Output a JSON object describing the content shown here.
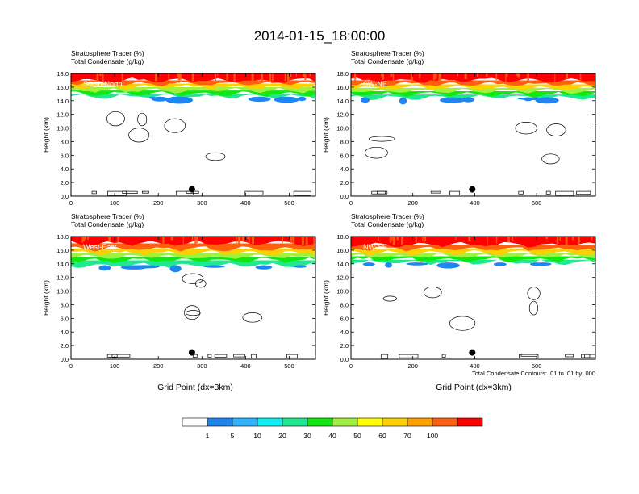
{
  "figure": {
    "title": "2014-01-15_18:00:00",
    "xlabel": "Grid Point (dx=3km)",
    "contour_note": "Total Condensate Contours: .01 to .01 by .000"
  },
  "colorbar": {
    "colors": [
      "#ffffff",
      "#1f85f0",
      "#2fb4ff",
      "#10f0f0",
      "#20e890",
      "#10e810",
      "#a0f040",
      "#ffff00",
      "#ffd000",
      "#ffa000",
      "#ff6010",
      "#ff0000"
    ],
    "labels": [
      "1",
      "5",
      "10",
      "20",
      "30",
      "40",
      "50",
      "60",
      "70",
      "100"
    ]
  },
  "chart_data": [
    {
      "type": "heatmap",
      "header": [
        "Stratosphere Tracer   (%)",
        "Total Condensate   (g/kg)"
      ],
      "section_label": "South-North",
      "ylabel": "Height (km)",
      "ylim": [
        0,
        18
      ],
      "yticks": [
        "0.0",
        "2.0",
        "4.0",
        "6.0",
        "8.0",
        "10.0",
        "12.0",
        "14.0",
        "16.0",
        "18.0"
      ],
      "xlim": [
        0,
        560
      ],
      "xticks": [
        {
          "v": 0,
          "label": "0"
        },
        {
          "v": 100,
          "label": "100"
        },
        {
          "v": 200,
          "label": "200"
        },
        {
          "v": 300,
          "label": "300"
        },
        {
          "v": 400,
          "label": "400"
        },
        {
          "v": 500,
          "label": "500"
        }
      ],
      "tracer_bands_km": [
        {
          "from": 17.0,
          "to": 18.0,
          "tracer_pct": 100
        },
        {
          "from": 16.5,
          "to": 17.0,
          "tracer_pct": 70
        },
        {
          "from": 16.0,
          "to": 16.5,
          "tracer_pct": 50
        },
        {
          "from": 15.5,
          "to": 16.0,
          "tracer_pct": 30
        },
        {
          "from": 15.0,
          "to": 15.5,
          "tracer_pct": 20
        },
        {
          "from": 14.6,
          "to": 15.0,
          "tracer_pct": 10
        }
      ],
      "marker": {
        "x": 277,
        "y_km": 1.0
      }
    },
    {
      "type": "heatmap",
      "header": [
        "Stratosphere Tracer   (%)",
        "Total Condensate   (g/kg)"
      ],
      "section_label": "SW-NE",
      "ylabel": "Height (km)",
      "ylim": [
        0,
        18
      ],
      "yticks": [
        "0.0",
        "2.0",
        "4.0",
        "6.0",
        "8.0",
        "10.0",
        "12.0",
        "14.0",
        "16.0",
        "18.0"
      ],
      "xlim": [
        0,
        790
      ],
      "xticks": [
        {
          "v": 0,
          "label": "0"
        },
        {
          "v": 200,
          "label": "200"
        },
        {
          "v": 400,
          "label": "400"
        },
        {
          "v": 600,
          "label": "600"
        }
      ],
      "tracer_bands_km": [
        {
          "from": 17.0,
          "to": 18.0,
          "tracer_pct": 100
        },
        {
          "from": 16.4,
          "to": 17.0,
          "tracer_pct": 70
        },
        {
          "from": 15.9,
          "to": 16.4,
          "tracer_pct": 50
        },
        {
          "from": 15.4,
          "to": 15.9,
          "tracer_pct": 30
        },
        {
          "from": 14.9,
          "to": 15.4,
          "tracer_pct": 20
        },
        {
          "from": 14.5,
          "to": 14.9,
          "tracer_pct": 10
        }
      ],
      "marker": {
        "x": 392,
        "y_km": 1.0
      }
    },
    {
      "type": "heatmap",
      "header": [
        "Stratosphere Tracer   (%)",
        "Total Condensate   (g/kg)"
      ],
      "section_label": "West-East",
      "ylabel": "Height (km)",
      "ylim": [
        0,
        18
      ],
      "yticks": [
        "0.0",
        "2.0",
        "4.0",
        "6.0",
        "8.0",
        "10.0",
        "12.0",
        "14.0",
        "16.0",
        "18.0"
      ],
      "xlim": [
        0,
        560
      ],
      "xticks": [
        {
          "v": 0,
          "label": "0"
        },
        {
          "v": 100,
          "label": "100"
        },
        {
          "v": 200,
          "label": "200"
        },
        {
          "v": 300,
          "label": "300"
        },
        {
          "v": 400,
          "label": "400"
        },
        {
          "v": 500,
          "label": "500"
        }
      ],
      "tracer_bands_km": [
        {
          "from": 17.0,
          "to": 18.0,
          "tracer_pct": 100
        },
        {
          "from": 16.2,
          "to": 17.0,
          "tracer_pct": 70
        },
        {
          "from": 15.6,
          "to": 16.2,
          "tracer_pct": 50
        },
        {
          "from": 15.0,
          "to": 15.6,
          "tracer_pct": 30
        },
        {
          "from": 14.5,
          "to": 15.0,
          "tracer_pct": 20
        },
        {
          "from": 13.8,
          "to": 14.5,
          "tracer_pct": 10
        }
      ],
      "marker": {
        "x": 277,
        "y_km": 1.0
      }
    },
    {
      "type": "heatmap",
      "header": [
        "Stratosphere Tracer   (%)",
        "Total Condensate   (g/kg)"
      ],
      "section_label": "NW-SE",
      "ylabel": "Height (km)",
      "ylim": [
        0,
        18
      ],
      "yticks": [
        "0.0",
        "2.0",
        "4.0",
        "6.0",
        "8.0",
        "10.0",
        "12.0",
        "14.0",
        "16.0",
        "18.0"
      ],
      "xlim": [
        0,
        790
      ],
      "xticks": [
        {
          "v": 0,
          "label": "0"
        },
        {
          "v": 200,
          "label": "200"
        },
        {
          "v": 400,
          "label": "400"
        },
        {
          "v": 600,
          "label": "600"
        }
      ],
      "tracer_bands_km": [
        {
          "from": 16.8,
          "to": 18.0,
          "tracer_pct": 100
        },
        {
          "from": 16.2,
          "to": 16.8,
          "tracer_pct": 70
        },
        {
          "from": 15.6,
          "to": 16.2,
          "tracer_pct": 50
        },
        {
          "from": 15.1,
          "to": 15.6,
          "tracer_pct": 30
        },
        {
          "from": 14.6,
          "to": 15.1,
          "tracer_pct": 20
        },
        {
          "from": 14.2,
          "to": 14.6,
          "tracer_pct": 10
        }
      ],
      "marker": {
        "x": 392,
        "y_km": 1.0
      }
    }
  ]
}
